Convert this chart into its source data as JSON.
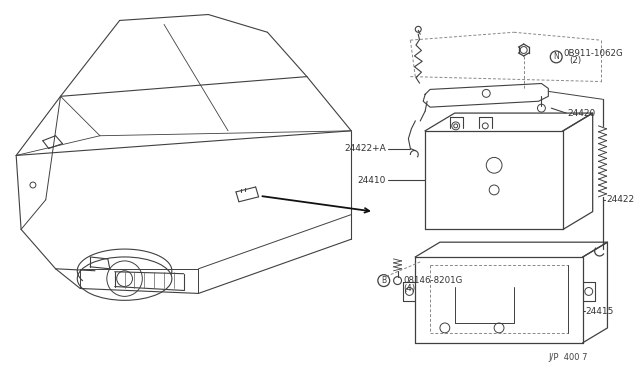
{
  "bg_color": "#ffffff",
  "line_color": "#404040",
  "text_color": "#333333",
  "footer": "J/P  400 7",
  "labels": {
    "part_N": "0B911-1062G",
    "part_N_sub": "(2)",
    "part_24420": "24420",
    "part_24422A": "24422+A",
    "part_24410": "24410",
    "part_24422": "24422",
    "part_B": "08146-8201G",
    "part_B_sub": "(4)",
    "part_24415": "24415"
  }
}
